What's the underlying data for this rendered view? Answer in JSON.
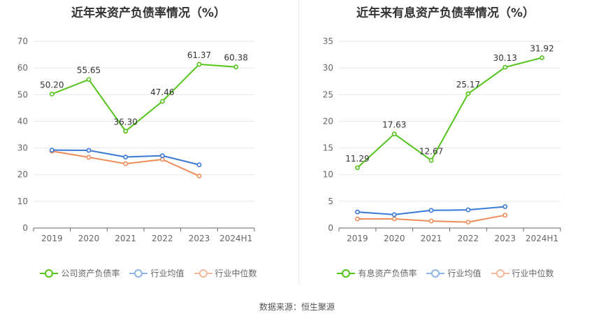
{
  "chart_data": [
    {
      "type": "line",
      "title": "近年来资产负债率情况（%）",
      "categories": [
        "2019",
        "2020",
        "2021",
        "2022",
        "2023",
        "2024H1"
      ],
      "ylim": [
        0,
        70
      ],
      "yticks": [
        0,
        10,
        20,
        30,
        40,
        50,
        60,
        70
      ],
      "series": [
        {
          "name": "公司资产负债率",
          "color": "#52c41a",
          "values": [
            50.2,
            55.65,
            36.3,
            47.46,
            61.37,
            60.38
          ],
          "labels": [
            "50.20",
            "55.65",
            "36.30",
            "47.46",
            "61.37",
            "60.38"
          ]
        },
        {
          "name": "行业均值",
          "color": "#3a78d8",
          "values": [
            29.2,
            29.1,
            26.6,
            27.1,
            23.7,
            null
          ]
        },
        {
          "name": "行业中位数",
          "color": "#ef8c5a",
          "values": [
            28.8,
            26.5,
            24.1,
            25.7,
            19.5,
            null
          ]
        }
      ]
    },
    {
      "type": "line",
      "title": "近年来有息资产负债率情况（%）",
      "categories": [
        "2019",
        "2020",
        "2021",
        "2022",
        "2023",
        "2024H1"
      ],
      "ylim": [
        0,
        35
      ],
      "yticks": [
        0,
        5,
        10,
        15,
        20,
        25,
        30,
        35
      ],
      "series": [
        {
          "name": "有息资产负债率",
          "color": "#52c41a",
          "values": [
            11.29,
            17.63,
            12.67,
            25.17,
            30.13,
            31.92
          ],
          "labels": [
            "11.29",
            "17.63",
            "12.67",
            "25.17",
            "30.13",
            "31.92"
          ]
        },
        {
          "name": "行业均值",
          "color": "#3a78d8",
          "values": [
            3.0,
            2.5,
            3.3,
            3.4,
            4.0,
            null
          ]
        },
        {
          "name": "行业中位数",
          "color": "#ef8c5a",
          "values": [
            1.7,
            1.7,
            1.3,
            1.1,
            2.4,
            null
          ]
        }
      ]
    }
  ],
  "legend": {
    "left": [
      "公司资产负债率",
      "行业均值",
      "行业中位数"
    ],
    "right": [
      "有息资产负债率",
      "行业均值",
      "行业中位数"
    ]
  },
  "colors": {
    "company": "#52c41a",
    "avg": "#3a78d8",
    "median": "#ef8c5a",
    "avg_legend": "#8fb3ea",
    "median_legend": "#f5b899"
  },
  "source": "数据来源：恒生聚源"
}
